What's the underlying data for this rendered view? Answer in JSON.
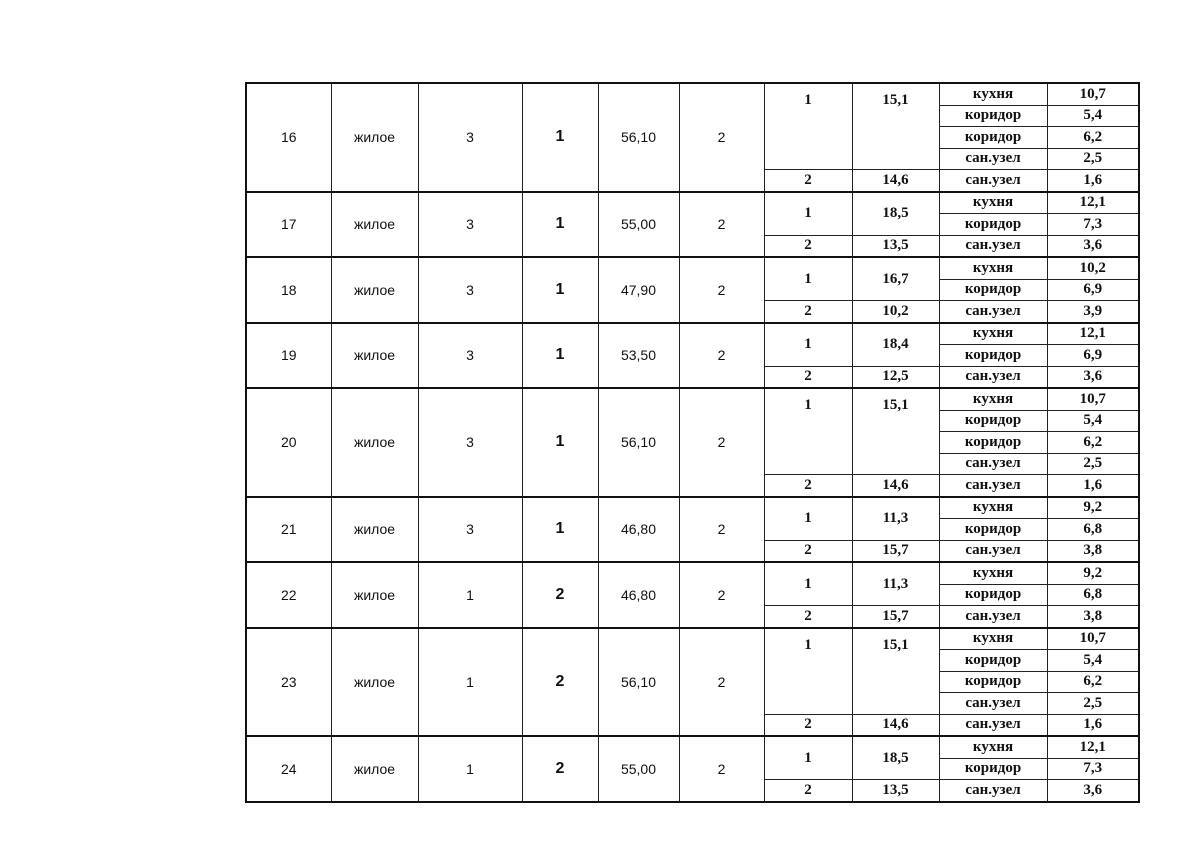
{
  "units": [
    {
      "no": "16",
      "type": "жилое",
      "c3": "3",
      "c4": "1",
      "area": "56,10",
      "rooms": "2",
      "room1": {
        "no": "1",
        "area": "15,1"
      },
      "room2": {
        "no": "2",
        "area": "14,6"
      },
      "aux": [
        {
          "name": "кухня",
          "area": "10,7"
        },
        {
          "name": "коридор",
          "area": "5,4"
        },
        {
          "name": "коридор",
          "area": "6,2"
        },
        {
          "name": "сан.узел",
          "area": "2,5"
        },
        {
          "name": "сан.узел",
          "area": "1,6"
        }
      ]
    },
    {
      "no": "17",
      "type": "жилое",
      "c3": "3",
      "c4": "1",
      "area": "55,00",
      "rooms": "2",
      "room1": {
        "no": "1",
        "area": "18,5"
      },
      "room2": {
        "no": "2",
        "area": "13,5"
      },
      "aux": [
        {
          "name": "кухня",
          "area": "12,1"
        },
        {
          "name": "коридор",
          "area": "7,3"
        },
        {
          "name": "сан.узел",
          "area": "3,6"
        }
      ]
    },
    {
      "no": "18",
      "type": "жилое",
      "c3": "3",
      "c4": "1",
      "area": "47,90",
      "rooms": "2",
      "room1": {
        "no": "1",
        "area": "16,7"
      },
      "room2": {
        "no": "2",
        "area": "10,2"
      },
      "aux": [
        {
          "name": "кухня",
          "area": "10,2"
        },
        {
          "name": "коридор",
          "area": "6,9"
        },
        {
          "name": "сан.узел",
          "area": "3,9"
        }
      ]
    },
    {
      "no": "19",
      "type": "жилое",
      "c3": "3",
      "c4": "1",
      "area": "53,50",
      "rooms": "2",
      "room1": {
        "no": "1",
        "area": "18,4"
      },
      "room2": {
        "no": "2",
        "area": "12,5"
      },
      "aux": [
        {
          "name": "кухня",
          "area": "12,1"
        },
        {
          "name": "коридор",
          "area": "6,9"
        },
        {
          "name": "сан.узел",
          "area": "3,6"
        }
      ]
    },
    {
      "no": "20",
      "type": "жилое",
      "c3": "3",
      "c4": "1",
      "area": "56,10",
      "rooms": "2",
      "room1": {
        "no": "1",
        "area": "15,1"
      },
      "room2": {
        "no": "2",
        "area": "14,6"
      },
      "aux": [
        {
          "name": "кухня",
          "area": "10,7"
        },
        {
          "name": "коридор",
          "area": "5,4"
        },
        {
          "name": "коридор",
          "area": "6,2"
        },
        {
          "name": "сан.узел",
          "area": "2,5"
        },
        {
          "name": "сан.узел",
          "area": "1,6"
        }
      ]
    },
    {
      "no": "21",
      "type": "жилое",
      "c3": "3",
      "c4": "1",
      "area": "46,80",
      "rooms": "2",
      "room1": {
        "no": "1",
        "area": "11,3"
      },
      "room2": {
        "no": "2",
        "area": "15,7"
      },
      "aux": [
        {
          "name": "кухня",
          "area": "9,2"
        },
        {
          "name": "коридор",
          "area": "6,8"
        },
        {
          "name": "сан.узел",
          "area": "3,8"
        }
      ]
    },
    {
      "no": "22",
      "type": "жилое",
      "c3": "1",
      "c4": "2",
      "area": "46,80",
      "rooms": "2",
      "room1": {
        "no": "1",
        "area": "11,3"
      },
      "room2": {
        "no": "2",
        "area": "15,7"
      },
      "aux": [
        {
          "name": "кухня",
          "area": "9,2"
        },
        {
          "name": "коридор",
          "area": "6,8"
        },
        {
          "name": "сан.узел",
          "area": "3,8"
        }
      ]
    },
    {
      "no": "23",
      "type": "жилое",
      "c3": "1",
      "c4": "2",
      "area": "56,10",
      "rooms": "2",
      "room1": {
        "no": "1",
        "area": "15,1"
      },
      "room2": {
        "no": "2",
        "area": "14,6"
      },
      "aux": [
        {
          "name": "кухня",
          "area": "10,7"
        },
        {
          "name": "коридор",
          "area": "5,4"
        },
        {
          "name": "коридор",
          "area": "6,2"
        },
        {
          "name": "сан.узел",
          "area": "2,5"
        },
        {
          "name": "сан.узел",
          "area": "1,6"
        }
      ]
    },
    {
      "no": "24",
      "type": "жилое",
      "c3": "1",
      "c4": "2",
      "area": "55,00",
      "rooms": "2",
      "room1": {
        "no": "1",
        "area": "18,5"
      },
      "room2": {
        "no": "2",
        "area": "13,5"
      },
      "aux": [
        {
          "name": "кухня",
          "area": "12,1"
        },
        {
          "name": "коридор",
          "area": "7,3"
        },
        {
          "name": "сан.узел",
          "area": "3,6"
        }
      ]
    }
  ]
}
